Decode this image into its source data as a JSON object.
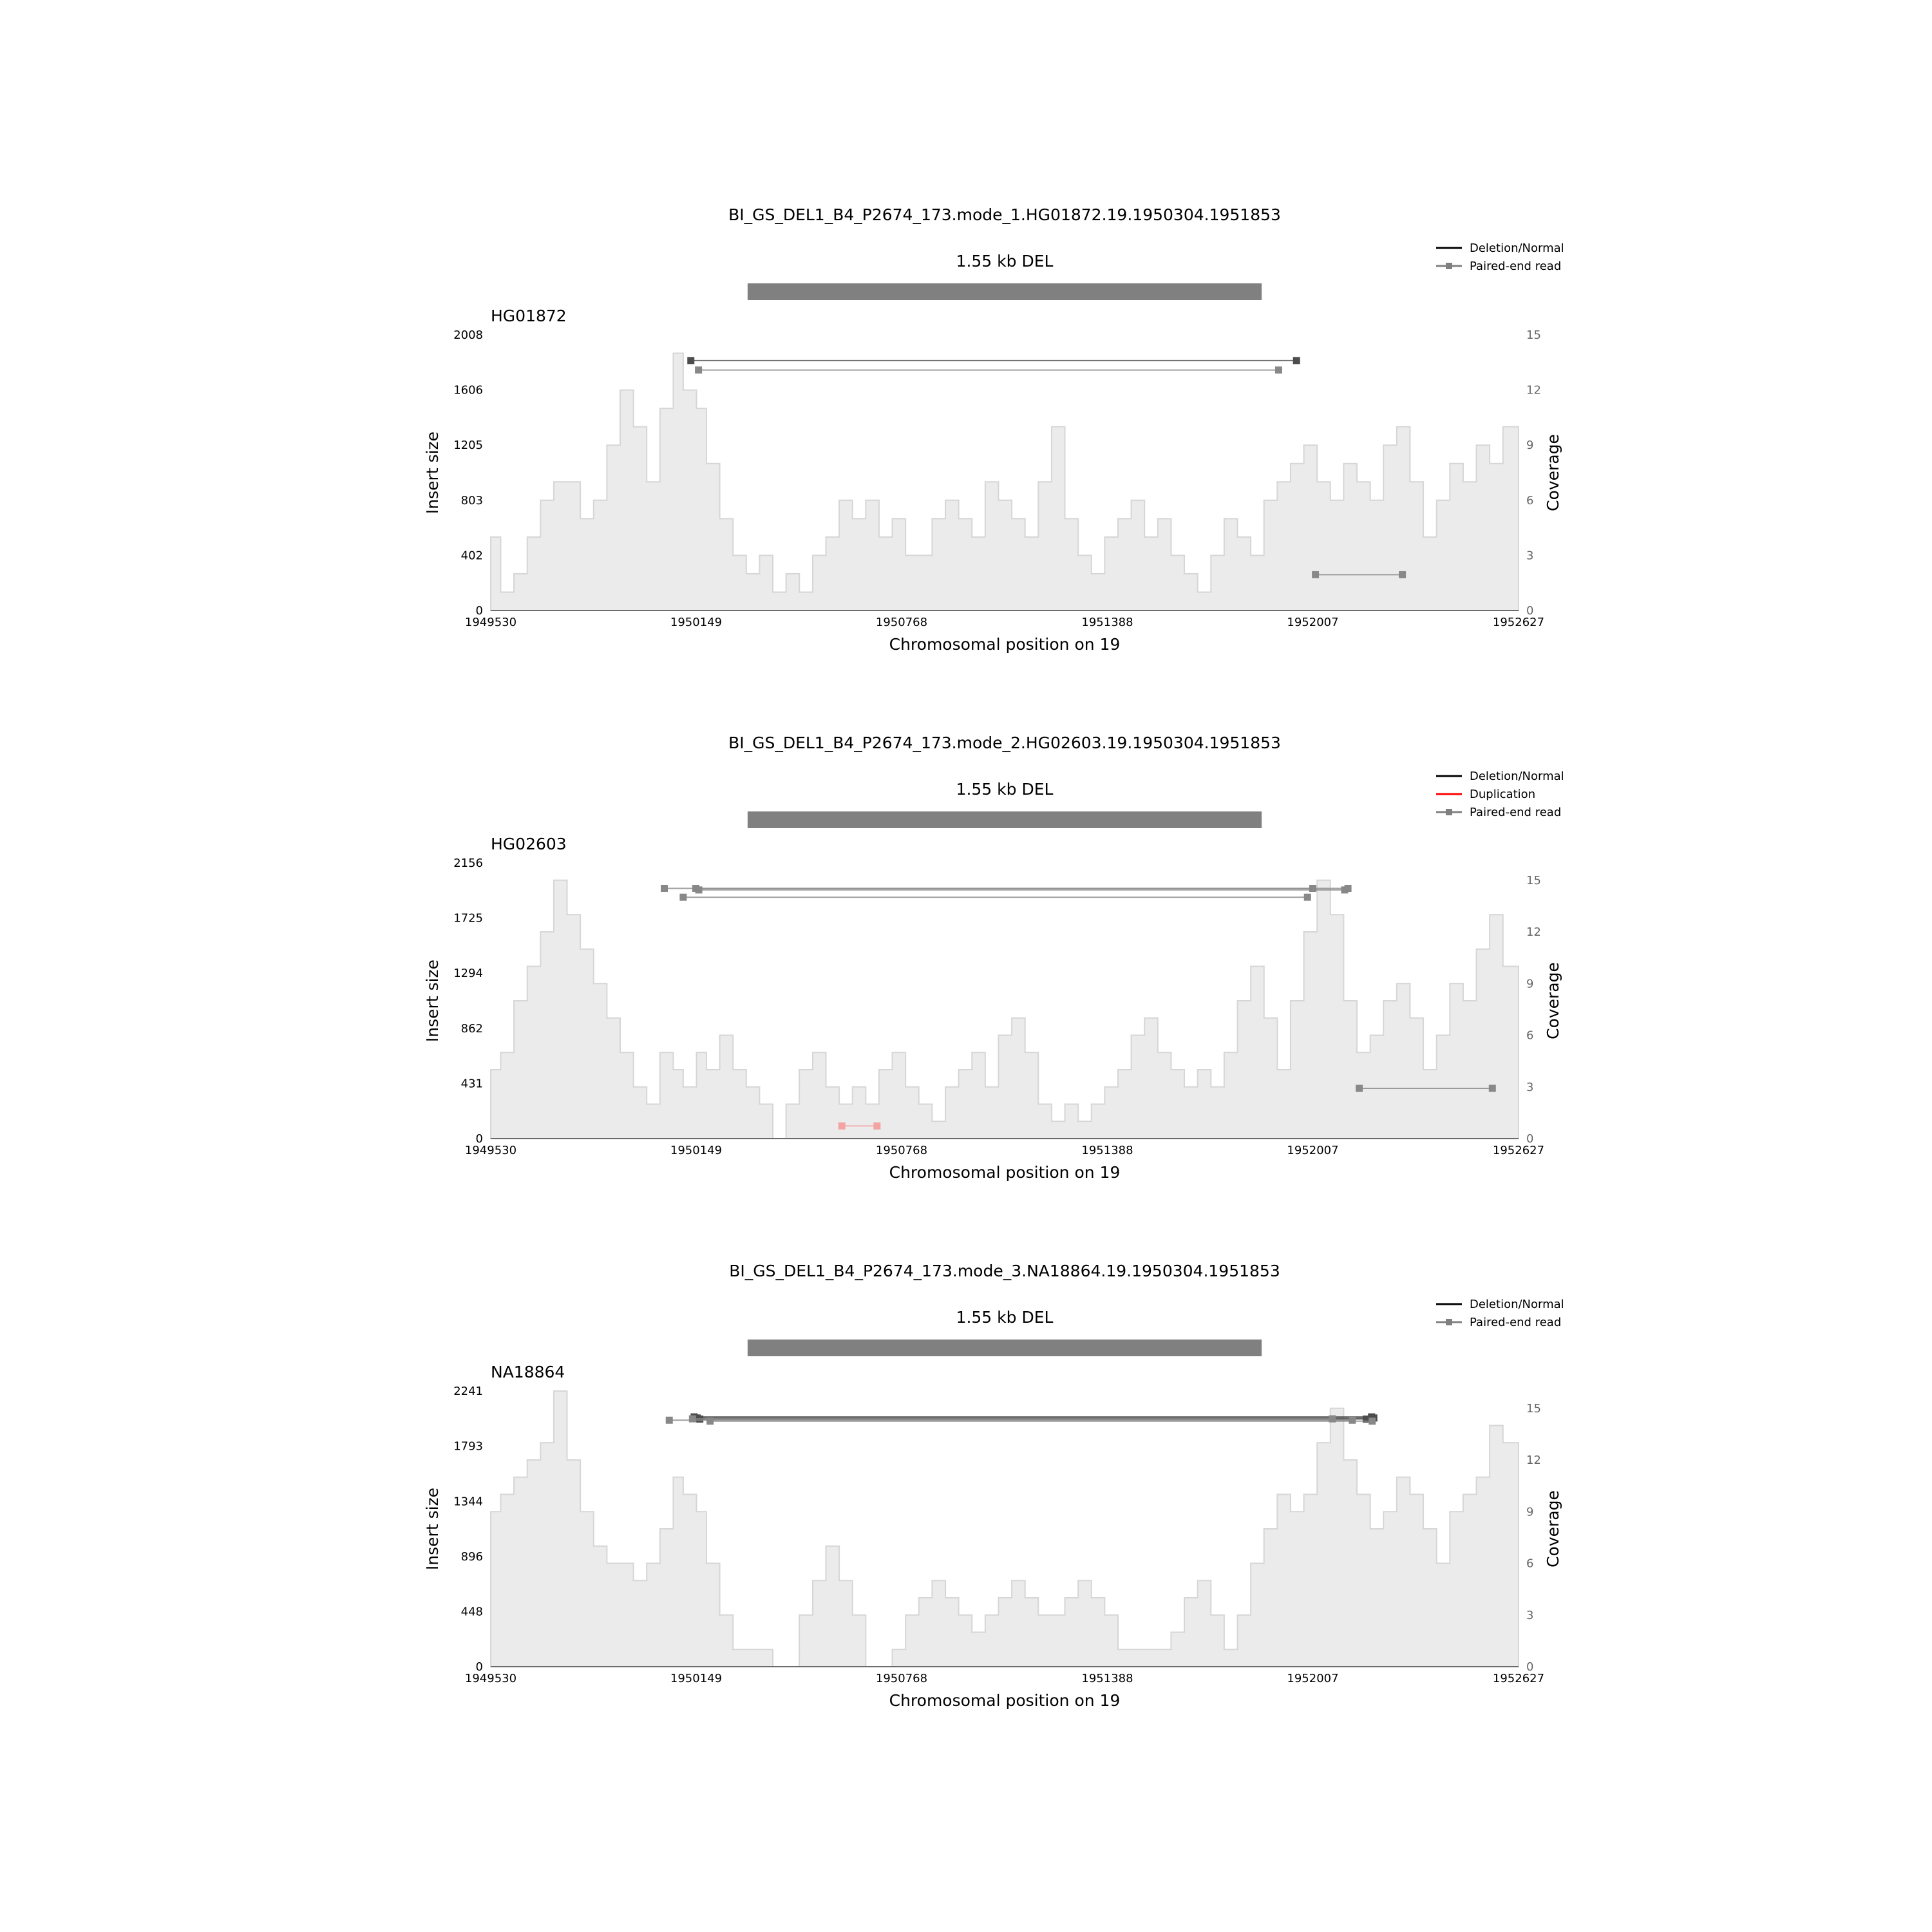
{
  "chart_data": [
    {
      "type": "area",
      "title": "BI_GS_DEL1_B4_P2674_173.mode_1.HG01872.19.1950304.1951853",
      "sv_label": "1.55 kb DEL",
      "sv": {
        "start": 1950304,
        "end": 1951853
      },
      "sample": "HG01872",
      "xlabel": "Chromosomal position on 19",
      "ylabel": "Insert size",
      "y2label": "Coverage",
      "xlim": [
        1949530,
        1952627
      ],
      "xticks": [
        1949530,
        1950149,
        1950768,
        1951388,
        1952007,
        1952627
      ],
      "xtick_labels": [
        "1949530",
        "1950149",
        "1950768",
        "1951388",
        "1952007",
        "1952627"
      ],
      "ylim": [
        0,
        2008
      ],
      "yticks": [
        0,
        402,
        803,
        1205,
        1606,
        2008
      ],
      "ytick_labels": [
        "0",
        "402",
        "803",
        "1205",
        "1606",
        "2008"
      ],
      "y2lim": [
        0,
        15
      ],
      "y2ticks": [
        0,
        3,
        6,
        9,
        12,
        15
      ],
      "y2tick_labels": [
        "0",
        "3",
        "6",
        "9",
        "12",
        "15"
      ],
      "legend": {
        "position": "top-right",
        "entries": [
          {
            "label": "Deletion/Normal",
            "color": "#000000",
            "marker": false
          },
          {
            "label": "Paired-end read",
            "color": "#808080",
            "marker": true
          }
        ]
      },
      "coverage": {
        "x": [
          1949530,
          1949560,
          1949600,
          1949640,
          1949680,
          1949720,
          1949760,
          1949800,
          1949840,
          1949880,
          1949920,
          1949960,
          1950000,
          1950040,
          1950080,
          1950110,
          1950150,
          1950180,
          1950220,
          1950260,
          1950300,
          1950340,
          1950380,
          1950420,
          1950460,
          1950500,
          1950540,
          1950580,
          1950620,
          1950660,
          1950700,
          1950740,
          1950780,
          1950820,
          1950860,
          1950900,
          1950940,
          1950980,
          1951020,
          1951060,
          1951100,
          1951140,
          1951180,
          1951220,
          1951260,
          1951300,
          1951340,
          1951380,
          1951420,
          1951460,
          1951500,
          1951540,
          1951580,
          1951620,
          1951660,
          1951700,
          1951740,
          1951780,
          1951820,
          1951860,
          1951900,
          1951940,
          1951980,
          1952020,
          1952060,
          1952100,
          1952140,
          1952180,
          1952220,
          1952260,
          1952300,
          1952340,
          1952380,
          1952420,
          1952460,
          1952500,
          1952540,
          1952580,
          1952627
        ],
        "values": [
          4,
          1,
          2,
          4,
          6,
          7,
          7,
          5,
          6,
          9,
          12,
          10,
          7,
          11,
          14,
          12,
          11,
          8,
          5,
          3,
          2,
          3,
          1,
          2,
          1,
          3,
          4,
          6,
          5,
          6,
          4,
          5,
          3,
          3,
          5,
          6,
          5,
          4,
          7,
          6,
          5,
          4,
          7,
          10,
          5,
          3,
          2,
          4,
          5,
          6,
          4,
          5,
          3,
          2,
          1,
          3,
          5,
          4,
          3,
          6,
          7,
          8,
          9,
          7,
          6,
          8,
          7,
          6,
          9,
          10,
          7,
          4,
          6,
          8,
          7,
          9,
          8,
          10,
          9
        ],
        "color": "#ebebeb",
        "edge_color": "#d6d6d6"
      },
      "reads": [
        {
          "x1": 1950133,
          "x2": 1951958,
          "y": 1821,
          "color": "#4d4d4d"
        },
        {
          "x1": 1950156,
          "x2": 1951904,
          "y": 1752,
          "color": "#888888"
        },
        {
          "x1": 1952015,
          "x2": 1952277,
          "y": 261,
          "color": "#888888"
        }
      ]
    },
    {
      "type": "area",
      "title": "BI_GS_DEL1_B4_P2674_173.mode_2.HG02603.19.1950304.1951853",
      "sv_label": "1.55 kb DEL",
      "sv": {
        "start": 1950304,
        "end": 1951853
      },
      "sample": "HG02603",
      "xlabel": "Chromosomal position on 19",
      "ylabel": "Insert size",
      "y2label": "Coverage",
      "xlim": [
        1949530,
        1952627
      ],
      "xticks": [
        1949530,
        1950149,
        1950768,
        1951388,
        1952007,
        1952627
      ],
      "xtick_labels": [
        "1949530",
        "1950149",
        "1950768",
        "1951388",
        "1952007",
        "1952627"
      ],
      "ylim": [
        0,
        2156
      ],
      "yticks": [
        0,
        431,
        862,
        1294,
        1725,
        2156
      ],
      "ytick_labels": [
        "0",
        "431",
        "862",
        "1294",
        "1725",
        "2156"
      ],
      "y2lim": [
        0,
        16
      ],
      "y2ticks": [
        0,
        3,
        6,
        9,
        12,
        15
      ],
      "y2tick_labels": [
        "0",
        "3",
        "6",
        "9",
        "12",
        "15"
      ],
      "legend": {
        "position": "top-right",
        "entries": [
          {
            "label": "Deletion/Normal",
            "color": "#000000",
            "marker": false
          },
          {
            "label": "Duplication",
            "color": "#ff0000",
            "marker": false
          },
          {
            "label": "Paired-end read",
            "color": "#808080",
            "marker": true
          }
        ]
      },
      "coverage": {
        "x": [
          1949530,
          1949560,
          1949600,
          1949640,
          1949680,
          1949720,
          1949760,
          1949800,
          1949840,
          1949880,
          1949920,
          1949960,
          1950000,
          1950040,
          1950080,
          1950110,
          1950150,
          1950180,
          1950220,
          1950260,
          1950300,
          1950340,
          1950380,
          1950420,
          1950460,
          1950500,
          1950540,
          1950580,
          1950620,
          1950660,
          1950700,
          1950740,
          1950780,
          1950820,
          1950860,
          1950900,
          1950940,
          1950980,
          1951020,
          1951060,
          1951100,
          1951140,
          1951180,
          1951220,
          1951260,
          1951300,
          1951340,
          1951380,
          1951420,
          1951460,
          1951500,
          1951540,
          1951580,
          1951620,
          1951660,
          1951700,
          1951740,
          1951780,
          1951820,
          1951860,
          1951900,
          1951940,
          1951980,
          1952020,
          1952060,
          1952100,
          1952140,
          1952180,
          1952220,
          1952260,
          1952300,
          1952340,
          1952380,
          1952420,
          1952460,
          1952500,
          1952540,
          1952580,
          1952627
        ],
        "values": [
          4,
          5,
          8,
          10,
          12,
          15,
          13,
          11,
          9,
          7,
          5,
          3,
          2,
          5,
          4,
          3,
          5,
          4,
          6,
          4,
          3,
          2,
          0,
          2,
          4,
          5,
          3,
          2,
          3,
          2,
          4,
          5,
          3,
          2,
          1,
          3,
          4,
          5,
          3,
          6,
          7,
          5,
          2,
          1,
          2,
          1,
          2,
          3,
          4,
          6,
          7,
          5,
          4,
          3,
          4,
          3,
          5,
          8,
          10,
          7,
          4,
          8,
          12,
          15,
          13,
          8,
          5,
          6,
          8,
          9,
          7,
          4,
          6,
          9,
          8,
          11,
          13,
          10,
          9
        ],
        "color": "#ebebeb",
        "edge_color": "#d6d6d6"
      },
      "reads": [
        {
          "x1": 1950053,
          "x2": 1952007,
          "y": 1957,
          "color": "#888888"
        },
        {
          "x1": 1950148,
          "x2": 1952113,
          "y": 1957,
          "color": "#888888"
        },
        {
          "x1": 1950157,
          "x2": 1952103,
          "y": 1945,
          "color": "#888888"
        },
        {
          "x1": 1950110,
          "x2": 1951991,
          "y": 1888,
          "color": "#888888"
        },
        {
          "x1": 1952147,
          "x2": 1952548,
          "y": 393,
          "color": "#888888"
        },
        {
          "x1": 1950588,
          "x2": 1950694,
          "y": 99,
          "color": "#f4a3a3"
        }
      ]
    },
    {
      "type": "area",
      "title": "BI_GS_DEL1_B4_P2674_173.mode_3.NA18864.19.1950304.1951853",
      "sv_label": "1.55 kb DEL",
      "sv": {
        "start": 1950304,
        "end": 1951853
      },
      "sample": "NA18864",
      "xlabel": "Chromosomal position on 19",
      "ylabel": "Insert size",
      "y2label": "Coverage",
      "xlim": [
        1949530,
        1952627
      ],
      "xticks": [
        1949530,
        1950149,
        1950768,
        1951388,
        1952007,
        1952627
      ],
      "xtick_labels": [
        "1949530",
        "1950149",
        "1950768",
        "1951388",
        "1952007",
        "1952627"
      ],
      "ylim": [
        0,
        2241
      ],
      "yticks": [
        0,
        448,
        896,
        1344,
        1793,
        2241
      ],
      "ytick_labels": [
        "0",
        "448",
        "896",
        "1344",
        "1793",
        "2241"
      ],
      "y2lim": [
        0,
        16
      ],
      "y2ticks": [
        0,
        3,
        6,
        9,
        12,
        15
      ],
      "y2tick_labels": [
        "0",
        "3",
        "6",
        "9",
        "12",
        "15"
      ],
      "legend": {
        "position": "top-right",
        "entries": [
          {
            "label": "Deletion/Normal",
            "color": "#000000",
            "marker": false
          },
          {
            "label": "Paired-end read",
            "color": "#808080",
            "marker": true
          }
        ]
      },
      "coverage": {
        "x": [
          1949530,
          1949560,
          1949600,
          1949640,
          1949680,
          1949720,
          1949760,
          1949800,
          1949840,
          1949880,
          1949920,
          1949960,
          1950000,
          1950040,
          1950080,
          1950110,
          1950150,
          1950180,
          1950220,
          1950260,
          1950300,
          1950340,
          1950380,
          1950420,
          1950460,
          1950500,
          1950540,
          1950580,
          1950620,
          1950660,
          1950700,
          1950740,
          1950780,
          1950820,
          1950860,
          1950900,
          1950940,
          1950980,
          1951020,
          1951060,
          1951100,
          1951140,
          1951180,
          1951220,
          1951260,
          1951300,
          1951340,
          1951380,
          1951420,
          1951460,
          1951500,
          1951540,
          1951580,
          1951620,
          1951660,
          1951700,
          1951740,
          1951780,
          1951820,
          1951860,
          1951900,
          1951940,
          1951980,
          1952020,
          1952060,
          1952100,
          1952140,
          1952180,
          1952220,
          1952260,
          1952300,
          1952340,
          1952380,
          1952420,
          1952460,
          1952500,
          1952540,
          1952580,
          1952627
        ],
        "values": [
          9,
          10,
          11,
          12,
          13,
          16,
          12,
          9,
          7,
          6,
          6,
          5,
          6,
          8,
          11,
          10,
          9,
          6,
          3,
          1,
          1,
          1,
          0,
          0,
          3,
          5,
          7,
          5,
          3,
          0,
          0,
          1,
          3,
          4,
          5,
          4,
          3,
          2,
          3,
          4,
          5,
          4,
          3,
          3,
          4,
          5,
          4,
          3,
          1,
          1,
          1,
          1,
          2,
          4,
          5,
          3,
          1,
          3,
          6,
          8,
          10,
          9,
          10,
          13,
          15,
          12,
          10,
          8,
          9,
          11,
          10,
          8,
          6,
          9,
          10,
          11,
          14,
          13,
          9
        ],
        "color": "#ebebeb",
        "edge_color": "#d6d6d6"
      },
      "reads": [
        {
          "x1": 1950143,
          "x2": 1952184,
          "y": 2031,
          "color": "#4d4d4d"
        },
        {
          "x1": 1950152,
          "x2": 1952191,
          "y": 2022,
          "color": "#4d4d4d"
        },
        {
          "x1": 1950160,
          "x2": 1952168,
          "y": 2013,
          "color": "#4d4d4d"
        },
        {
          "x1": 1950068,
          "x2": 1952126,
          "y": 2004,
          "color": "#888888"
        },
        {
          "x1": 1950191,
          "x2": 1952186,
          "y": 1996,
          "color": "#888888"
        },
        {
          "x1": 1950138,
          "x2": 1952066,
          "y": 2015,
          "color": "#888888"
        }
      ]
    }
  ]
}
